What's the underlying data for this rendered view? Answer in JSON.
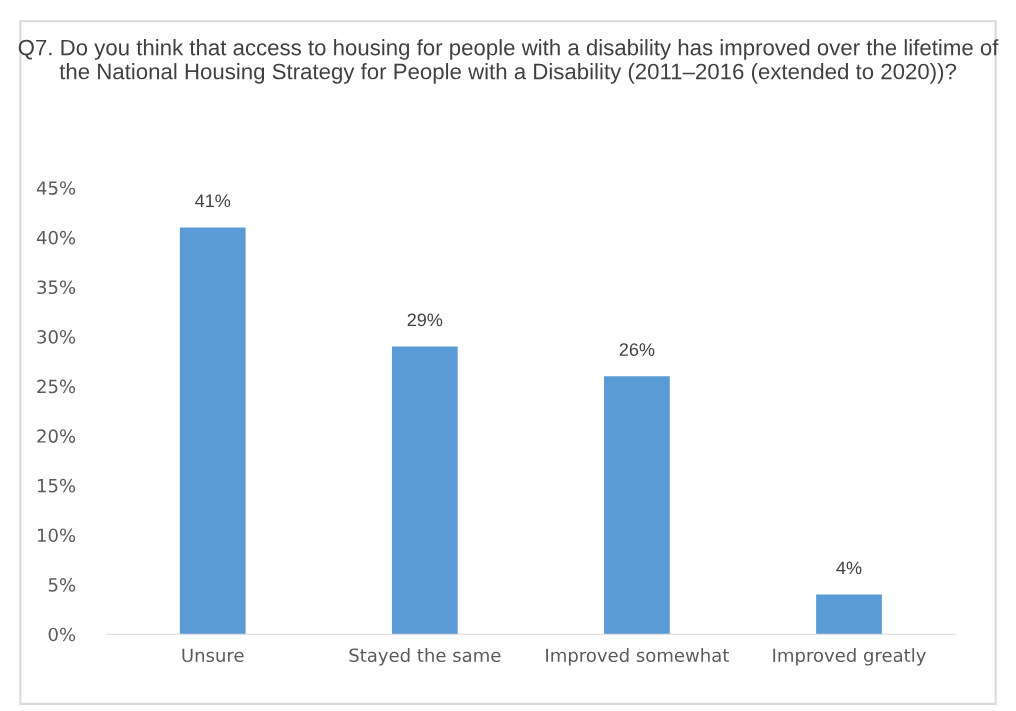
{
  "chart_data": {
    "type": "bar",
    "title": "Q7. Do you think that access to housing for people with a disability has improved over the lifetime of the National Housing Strategy for People with a Disability (2011–2016 (extended to 2020))?",
    "categories": [
      "Unsure",
      "Stayed the same",
      "Improved somewhat",
      "Improved greatly"
    ],
    "values": [
      41,
      29,
      26,
      4
    ],
    "value_labels": [
      "41%",
      "29%",
      "26%",
      "4%"
    ],
    "color": "#5b9bd5",
    "ylim": [
      0,
      45
    ],
    "yticks": [
      {
        "value": 0,
        "label": "0%"
      },
      {
        "value": 5,
        "label": "5%"
      },
      {
        "value": 10,
        "label": "10%"
      },
      {
        "value": 15,
        "label": "15%"
      },
      {
        "value": 20,
        "label": "20%"
      },
      {
        "value": 25,
        "label": "25%"
      },
      {
        "value": 30,
        "label": "30%"
      },
      {
        "value": 35,
        "label": "35%"
      },
      {
        "value": 40,
        "label": "40%"
      },
      {
        "value": 45,
        "label": "45%"
      }
    ],
    "grid": false
  }
}
